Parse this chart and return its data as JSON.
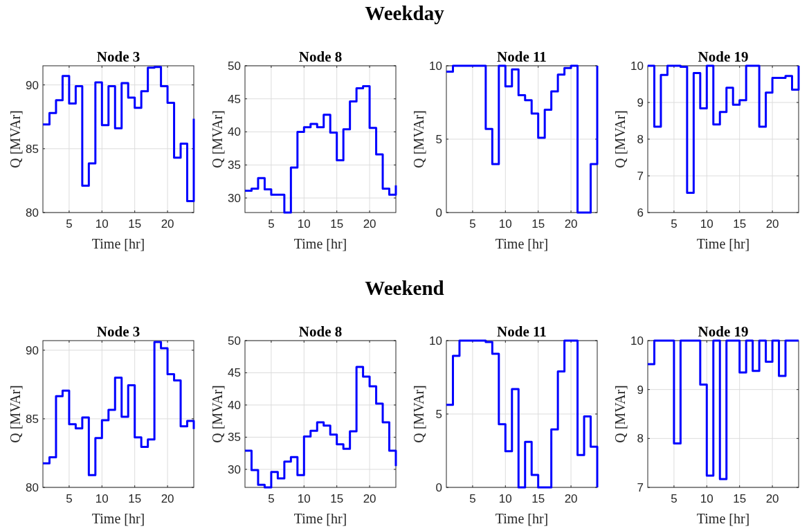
{
  "chart_data": [
    {
      "type": "step",
      "annotations": [
        "Weekday"
      ],
      "title": "Node 3",
      "xlabel": "Time [hr]",
      "ylabel": "Q [MVAr]",
      "color": "#0000ff",
      "x": [
        1,
        2,
        3,
        4,
        5,
        6,
        7,
        8,
        9,
        10,
        11,
        12,
        13,
        14,
        15,
        16,
        17,
        18,
        19,
        20,
        21,
        22,
        23,
        24
      ],
      "values": [
        86.9,
        87.8,
        88.8,
        90.7,
        88.55,
        89.9,
        82.1,
        83.85,
        90.2,
        86.85,
        89.9,
        86.6,
        90.15,
        89.0,
        88.2,
        89.5,
        91.35,
        91.4,
        89.9,
        88.6,
        84.3,
        85.4,
        80.9,
        87.35
      ],
      "xlim": [
        1,
        24
      ],
      "ylim": [
        80,
        91.5
      ],
      "xticks": [
        5,
        10,
        15,
        20
      ],
      "yticks": [
        80,
        85,
        90
      ],
      "grid": true
    },
    {
      "type": "step",
      "title": "Node 8",
      "xlabel": "Time [hr]",
      "ylabel": "Q [MVAr]",
      "color": "#0000ff",
      "x": [
        1,
        2,
        3,
        4,
        5,
        6,
        7,
        8,
        9,
        10,
        11,
        12,
        13,
        14,
        15,
        16,
        17,
        18,
        19,
        20,
        21,
        22,
        23,
        24
      ],
      "values": [
        31.1,
        31.4,
        33.0,
        31.3,
        30.5,
        30.5,
        27.8,
        34.6,
        40.0,
        40.7,
        41.2,
        40.7,
        42.6,
        39.9,
        35.7,
        40.4,
        44.6,
        46.6,
        46.9,
        40.6,
        36.6,
        31.4,
        30.5,
        31.9
      ],
      "xlim": [
        1,
        24
      ],
      "ylim": [
        27.8,
        50
      ],
      "xticks": [
        5,
        10,
        15,
        20
      ],
      "yticks": [
        30,
        35,
        40,
        45,
        50
      ],
      "grid": true
    },
    {
      "type": "step",
      "title": "Node 11",
      "xlabel": "Time [hr]",
      "ylabel": "Q [MVAr]",
      "color": "#0000ff",
      "x": [
        1,
        2,
        3,
        4,
        5,
        6,
        7,
        8,
        9,
        10,
        11,
        12,
        13,
        14,
        15,
        16,
        17,
        18,
        19,
        20,
        21,
        22,
        23,
        24
      ],
      "values": [
        9.6,
        10,
        10,
        10,
        10,
        10,
        5.7,
        3.3,
        10,
        8.6,
        9.75,
        8.0,
        7.65,
        6.75,
        5.1,
        7.0,
        8.25,
        9.4,
        9.85,
        10,
        0,
        0,
        3.3,
        10
      ],
      "xlim": [
        1,
        24
      ],
      "ylim": [
        0,
        10
      ],
      "xticks": [
        5,
        10,
        15,
        20
      ],
      "yticks": [
        0,
        5,
        10
      ],
      "grid": true
    },
    {
      "type": "step",
      "title": "Node 19",
      "xlabel": "Time [hr]",
      "ylabel": "Q [MVAr]",
      "color": "#0000ff",
      "x": [
        1,
        2,
        3,
        4,
        5,
        6,
        7,
        8,
        9,
        10,
        11,
        12,
        13,
        14,
        15,
        16,
        17,
        18,
        19,
        20,
        21,
        22,
        23,
        24
      ],
      "values": [
        10,
        8.34,
        9.75,
        10,
        10,
        9.97,
        6.54,
        9.8,
        8.84,
        10,
        8.4,
        8.74,
        9.4,
        8.94,
        9.06,
        10,
        10,
        8.34,
        9.27,
        9.67,
        9.67,
        9.72,
        9.35,
        10
      ],
      "xlim": [
        1,
        24
      ],
      "ylim": [
        6,
        10
      ],
      "xticks": [
        5,
        10,
        15,
        20
      ],
      "yticks": [
        6,
        7,
        8,
        9,
        10
      ],
      "grid": true
    },
    {
      "type": "step",
      "annotations": [
        "Weekend"
      ],
      "title": "Node 3",
      "xlabel": "Time [hr]",
      "ylabel": "Q [MVAr]",
      "color": "#0000ff",
      "x": [
        1,
        2,
        3,
        4,
        5,
        6,
        7,
        8,
        9,
        10,
        11,
        12,
        13,
        14,
        15,
        16,
        17,
        18,
        19,
        20,
        21,
        22,
        23,
        24
      ],
      "values": [
        81.75,
        82.2,
        86.65,
        87.05,
        84.6,
        84.3,
        85.1,
        80.9,
        83.6,
        84.9,
        85.65,
        88.0,
        85.15,
        87.45,
        83.65,
        82.95,
        83.5,
        90.6,
        90.15,
        88.25,
        87.8,
        84.45,
        84.85,
        84.25
      ],
      "xlim": [
        1,
        24
      ],
      "ylim": [
        80,
        90.7
      ],
      "xticks": [
        5,
        10,
        15,
        20
      ],
      "yticks": [
        80,
        85,
        90
      ],
      "grid": true
    },
    {
      "type": "step",
      "title": "Node 8",
      "xlabel": "Time [hr]",
      "ylabel": "Q [MVAr]",
      "color": "#0000ff",
      "x": [
        1,
        2,
        3,
        4,
        5,
        6,
        7,
        8,
        9,
        10,
        11,
        12,
        13,
        14,
        15,
        16,
        17,
        18,
        19,
        20,
        21,
        22,
        23,
        24
      ],
      "values": [
        32.9,
        29.9,
        27.6,
        27.2,
        29.6,
        28.6,
        31.2,
        31.9,
        29.1,
        35.1,
        36.0,
        37.3,
        36.8,
        35.4,
        33.9,
        33.2,
        35.9,
        45.9,
        44.4,
        42.9,
        40.2,
        37.3,
        32.9,
        30.5
      ],
      "xlim": [
        1,
        24
      ],
      "ylim": [
        27.2,
        50
      ],
      "xticks": [
        5,
        10,
        15,
        20
      ],
      "yticks": [
        30,
        35,
        40,
        45,
        50
      ],
      "grid": true
    },
    {
      "type": "step",
      "title": "Node 11",
      "xlabel": "Time [hr]",
      "ylabel": "Q [MVAr]",
      "color": "#0000ff",
      "x": [
        1,
        2,
        3,
        4,
        5,
        6,
        7,
        8,
        9,
        10,
        11,
        12,
        13,
        14,
        15,
        16,
        17,
        18,
        19,
        20,
        21,
        22,
        23,
        24
      ],
      "values": [
        5.63,
        8.96,
        10,
        10,
        10,
        10,
        9.9,
        9.1,
        4.3,
        2.46,
        6.7,
        0,
        3.1,
        0.85,
        0,
        0,
        3.95,
        7.9,
        10,
        10,
        2.2,
        4.84,
        2.77,
        0
      ],
      "xlim": [
        1,
        24
      ],
      "ylim": [
        0,
        10
      ],
      "xticks": [
        5,
        10,
        15,
        20
      ],
      "yticks": [
        0,
        5,
        10
      ],
      "grid": true
    },
    {
      "type": "step",
      "title": "Node 19",
      "xlabel": "Time [hr]",
      "ylabel": "Q [MVAr]",
      "color": "#0000ff",
      "x": [
        1,
        2,
        3,
        4,
        5,
        6,
        7,
        8,
        9,
        10,
        11,
        12,
        13,
        14,
        15,
        16,
        17,
        18,
        19,
        20,
        21,
        22,
        23,
        24
      ],
      "values": [
        9.52,
        10,
        10,
        10,
        7.9,
        10,
        10,
        10,
        9.1,
        7.24,
        10,
        7.17,
        10,
        10,
        9.35,
        10,
        9.38,
        10,
        9.57,
        10,
        9.28,
        10,
        10,
        10
      ],
      "xlim": [
        1,
        24
      ],
      "ylim": [
        7,
        10
      ],
      "xticks": [
        5,
        10,
        15,
        20
      ],
      "yticks": [
        7,
        8,
        9,
        10
      ],
      "grid": true
    }
  ]
}
